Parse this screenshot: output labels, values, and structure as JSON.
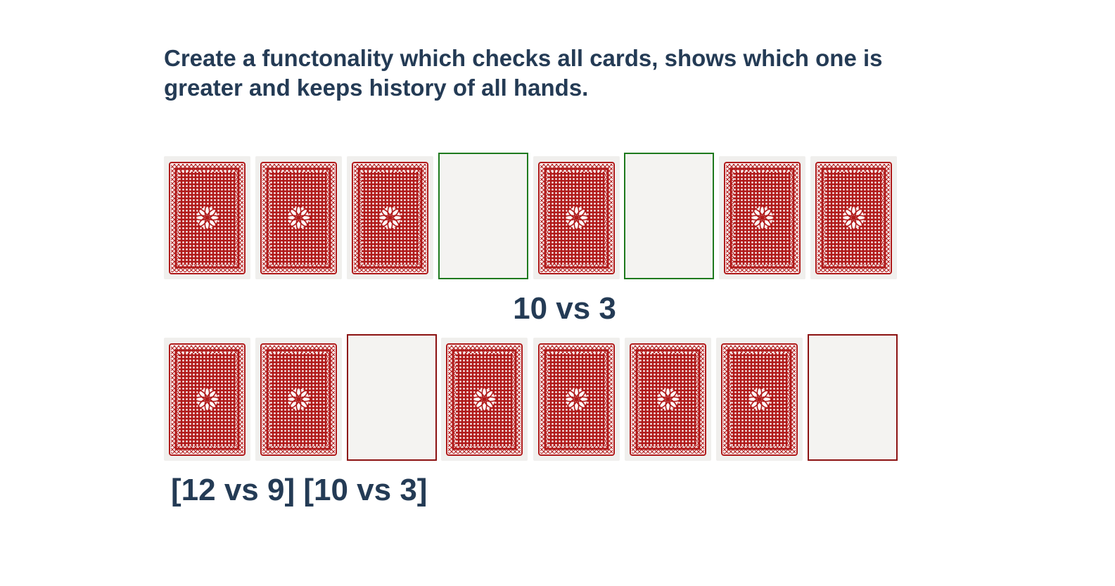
{
  "task": {
    "text": "Create a functonality which checks all cards, shows which one is greater and keeps history of all hands."
  },
  "colors": {
    "text": "#243b55",
    "card_back": "#b01a1a",
    "winner_border": "#1e7a1e",
    "loser_border": "#8c1212",
    "slot_fill": "#f4f3f1"
  },
  "hands": {
    "top": {
      "cards": [
        "back",
        "back",
        "back",
        "empty",
        "back",
        "empty",
        "back",
        "back"
      ]
    },
    "bottom": {
      "cards": [
        "back",
        "back",
        "empty",
        "back",
        "back",
        "back",
        "back",
        "empty"
      ]
    }
  },
  "result": {
    "text": "10 vs 3"
  },
  "history": {
    "text": "[12 vs 9] [10 vs 3]"
  }
}
